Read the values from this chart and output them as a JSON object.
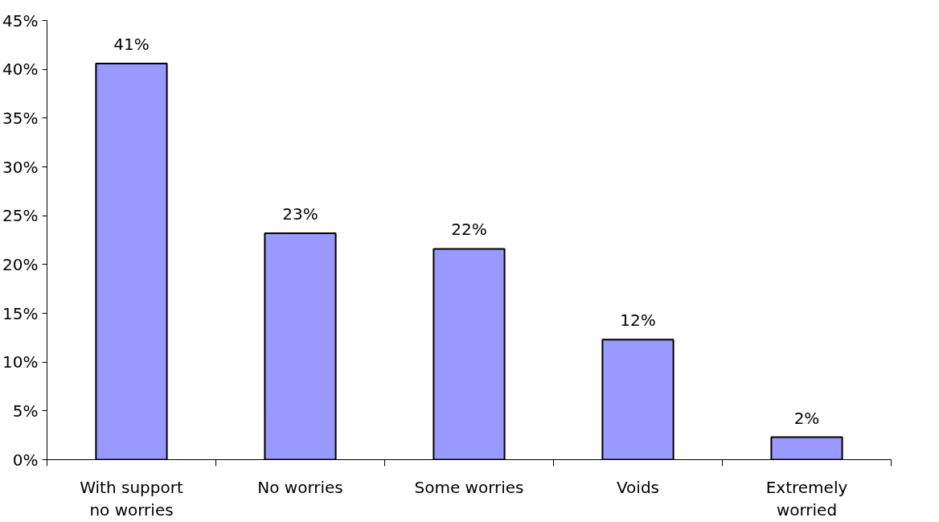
{
  "chart_data": {
    "type": "bar",
    "categories": [
      "With support no worries",
      "No worries",
      "Some worries",
      "Voids",
      "Extremely worried"
    ],
    "values": [
      40.6,
      23.2,
      21.6,
      12.3,
      2.3
    ],
    "value_labels": [
      "41%",
      "23%",
      "22%",
      "12%",
      "2%"
    ],
    "color": "#9999ff",
    "ylim": [
      0,
      45
    ],
    "yticks": [
      {
        "value": 0,
        "label": "0%"
      },
      {
        "value": 5,
        "label": "5%"
      },
      {
        "value": 10,
        "label": "10%"
      },
      {
        "value": 15,
        "label": "15%"
      },
      {
        "value": 20,
        "label": "20%"
      },
      {
        "value": 25,
        "label": "25%"
      },
      {
        "value": 30,
        "label": "30%"
      },
      {
        "value": 35,
        "label": "35%"
      },
      {
        "value": 40,
        "label": "40%"
      },
      {
        "value": 45,
        "label": "45%"
      }
    ],
    "grid": false
  }
}
